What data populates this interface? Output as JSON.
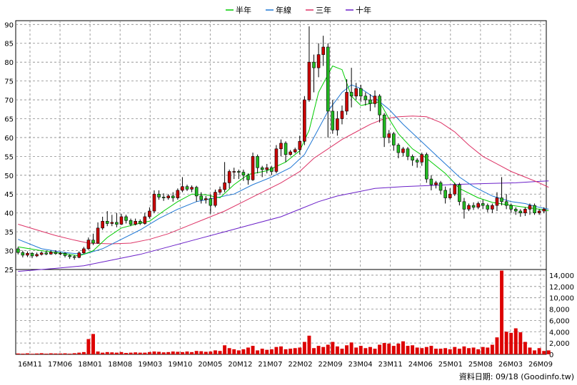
{
  "chart_data": [
    {
      "type": "candlestick",
      "legend": [
        {
          "name": "半年",
          "color": "#00cc00"
        },
        {
          "name": "年線",
          "color": "#1f77d4"
        },
        {
          "name": "三年",
          "color": "#dd3366"
        },
        {
          "name": "十年",
          "color": "#6a1fc8"
        }
      ],
      "ylim": [
        25,
        91
      ],
      "yticks": [
        25,
        30,
        35,
        40,
        45,
        50,
        55,
        60,
        65,
        70,
        75,
        80,
        85,
        90
      ],
      "xticks": [
        "16M11",
        "17M06",
        "18M01",
        "18M08",
        "19M03",
        "19M10",
        "20M05",
        "20M12",
        "21M07",
        "22M02",
        "22M09",
        "23M04",
        "23M11",
        "24M06",
        "25M01",
        "25M08",
        "26M03",
        "26M09"
      ],
      "grid": true,
      "candles": [
        [
          30.5,
          29.5,
          31.0,
          29.0
        ],
        [
          29.5,
          28.8,
          30.0,
          28.2
        ],
        [
          28.8,
          29.3,
          29.8,
          28.3
        ],
        [
          29.3,
          28.6,
          29.6,
          28.0
        ],
        [
          28.6,
          29.0,
          29.5,
          28.3
        ],
        [
          29.0,
          29.4,
          29.8,
          28.7
        ],
        [
          29.4,
          29.1,
          29.9,
          28.8
        ],
        [
          29.1,
          29.6,
          30.0,
          28.9
        ],
        [
          29.6,
          29.2,
          30.1,
          28.9
        ],
        [
          29.2,
          29.3,
          29.7,
          28.8
        ],
        [
          29.3,
          28.7,
          29.6,
          28.2
        ],
        [
          28.7,
          28.4,
          29.0,
          27.8
        ],
        [
          28.4,
          28.2,
          28.8,
          27.6
        ],
        [
          28.2,
          29.4,
          29.8,
          28.0
        ],
        [
          29.4,
          30.5,
          31.0,
          29.1
        ],
        [
          30.5,
          32.8,
          33.5,
          30.2
        ],
        [
          32.8,
          32.0,
          34.5,
          31.5
        ],
        [
          32.0,
          36.0,
          37.5,
          31.8
        ],
        [
          36.0,
          37.8,
          39.0,
          35.5
        ],
        [
          37.8,
          37.2,
          40.5,
          36.5
        ],
        [
          37.2,
          37.5,
          39.5,
          36.5
        ],
        [
          37.5,
          37.0,
          40.0,
          36.2
        ],
        [
          37.0,
          39.0,
          39.8,
          36.8
        ],
        [
          39.0,
          38.0,
          39.5,
          37.2
        ],
        [
          38.0,
          37.0,
          38.5,
          36.5
        ],
        [
          37.0,
          37.8,
          38.5,
          36.7
        ],
        [
          37.8,
          37.2,
          38.3,
          36.8
        ],
        [
          37.2,
          39.0,
          40.0,
          36.9
        ],
        [
          39.0,
          40.5,
          41.5,
          38.5
        ],
        [
          40.5,
          45.0,
          46.0,
          40.0
        ],
        [
          45.0,
          44.2,
          46.0,
          43.5
        ],
        [
          44.2,
          44.0,
          45.2,
          43.2
        ],
        [
          44.0,
          44.5,
          45.0,
          43.5
        ],
        [
          44.5,
          44.0,
          45.5,
          43.0
        ],
        [
          44.0,
          46.0,
          46.5,
          43.5
        ],
        [
          46.0,
          47.0,
          49.5,
          45.5
        ],
        [
          47.0,
          46.3,
          47.5,
          45.8
        ],
        [
          46.3,
          46.8,
          47.3,
          45.5
        ],
        [
          46.8,
          44.5,
          47.2,
          43.0
        ],
        [
          44.5,
          43.5,
          45.5,
          42.5
        ],
        [
          43.5,
          43.8,
          44.5,
          42.5
        ],
        [
          43.8,
          42.0,
          45.0,
          39.8
        ],
        [
          42.0,
          45.5,
          46.2,
          41.5
        ],
        [
          45.5,
          46.2,
          47.0,
          44.8
        ],
        [
          46.2,
          48.0,
          53.5,
          45.5
        ],
        [
          48.0,
          51.0,
          51.5,
          46.5
        ],
        [
          51.0,
          51.0,
          52.0,
          49.0
        ],
        [
          51.0,
          50.8,
          51.5,
          49.0
        ],
        [
          50.8,
          50.0,
          51.5,
          48.5
        ],
        [
          50.0,
          48.8,
          50.5,
          47.5
        ],
        [
          48.8,
          55.0,
          56.0,
          48.5
        ],
        [
          55.0,
          52.0,
          55.5,
          50.5
        ],
        [
          52.0,
          51.5,
          52.5,
          49.5
        ],
        [
          51.5,
          52.0,
          53.0,
          50.5
        ],
        [
          52.0,
          51.0,
          52.5,
          50.0
        ],
        [
          51.0,
          57.0,
          58.0,
          50.5
        ],
        [
          57.0,
          58.5,
          59.5,
          55.0
        ],
        [
          58.5,
          55.5,
          59.0,
          53.5
        ],
        [
          55.5,
          56.2,
          56.7,
          55.2
        ],
        [
          56.2,
          56.8,
          57.3,
          55.8
        ],
        [
          56.8,
          59.0,
          60.5,
          55.5
        ],
        [
          59.0,
          70.0,
          71.0,
          58.0
        ],
        [
          70.0,
          80.0,
          89.5,
          69.5
        ],
        [
          80.0,
          78.5,
          82.0,
          72.0
        ],
        [
          78.5,
          82.0,
          85.0,
          76.0
        ],
        [
          82.0,
          84.0,
          87.0,
          79.0
        ],
        [
          84.0,
          67.0,
          85.0,
          60.0
        ],
        [
          67.0,
          62.0,
          70.0,
          61.0
        ],
        [
          62.0,
          65.0,
          67.0,
          60.5
        ],
        [
          65.0,
          67.0,
          68.5,
          63.5
        ],
        [
          67.0,
          72.0,
          75.5,
          66.0
        ],
        [
          72.0,
          71.0,
          78.5,
          68.0
        ],
        [
          71.0,
          73.0,
          74.5,
          70.0
        ],
        [
          73.0,
          71.0,
          74.0,
          69.5
        ],
        [
          71.0,
          70.0,
          72.0,
          68.5
        ],
        [
          70.0,
          69.0,
          71.5,
          67.0
        ],
        [
          69.0,
          71.0,
          72.5,
          68.0
        ],
        [
          71.0,
          66.0,
          71.5,
          64.0
        ],
        [
          66.0,
          60.0,
          66.5,
          57.5
        ],
        [
          60.0,
          61.0,
          62.0,
          58.5
        ],
        [
          61.0,
          58.0,
          61.5,
          56.5
        ],
        [
          58.0,
          56.0,
          58.5,
          54.5
        ],
        [
          56.0,
          57.0,
          57.5,
          55.0
        ],
        [
          57.0,
          55.0,
          57.5,
          54.0
        ],
        [
          55.0,
          54.0,
          55.5,
          52.5
        ],
        [
          54.0,
          53.5,
          54.5,
          52.0
        ],
        [
          53.5,
          55.5,
          56.0,
          52.5
        ],
        [
          55.5,
          49.0,
          56.0,
          48.0
        ],
        [
          49.0,
          47.5,
          50.0,
          46.0
        ],
        [
          47.5,
          48.0,
          48.5,
          46.5
        ],
        [
          48.0,
          46.0,
          48.5,
          45.0
        ],
        [
          46.0,
          44.0,
          47.0,
          42.5
        ],
        [
          44.0,
          45.0,
          46.5,
          43.5
        ],
        [
          45.0,
          47.5,
          48.0,
          44.5
        ],
        [
          47.5,
          43.0,
          48.0,
          42.0
        ],
        [
          43.0,
          41.0,
          44.0,
          38.5
        ],
        [
          41.0,
          42.0,
          42.5,
          40.5
        ],
        [
          42.0,
          41.5,
          42.8,
          40.8
        ],
        [
          41.5,
          42.5,
          43.0,
          41.0
        ],
        [
          42.5,
          42.0,
          43.5,
          41.0
        ],
        [
          42.0,
          41.0,
          42.5,
          40.2
        ],
        [
          41.0,
          42.0,
          42.5,
          40.0
        ],
        [
          42.0,
          44.0,
          45.5,
          40.5
        ],
        [
          44.0,
          43.0,
          49.5,
          42.0
        ],
        [
          43.0,
          42.0,
          45.0,
          41.0
        ],
        [
          42.0,
          41.0,
          42.5,
          40.0
        ],
        [
          41.0,
          40.5,
          41.5,
          39.5
        ],
        [
          40.5,
          40.0,
          41.0,
          39.0
        ],
        [
          40.0,
          41.0,
          41.5,
          39.2
        ],
        [
          41.0,
          42.0,
          42.5,
          39.5
        ],
        [
          42.0,
          40.0,
          42.5,
          39.5
        ],
        [
          40.0,
          40.5,
          41.0,
          39.5
        ],
        [
          40.5,
          41.0,
          41.5,
          40.0
        ]
      ],
      "ma_half_year": [
        [
          0,
          31.0
        ],
        [
          5,
          30.0
        ],
        [
          10,
          29.2
        ],
        [
          13,
          28.6
        ],
        [
          16,
          30.0
        ],
        [
          19,
          33.5
        ],
        [
          22,
          36.0
        ],
        [
          26,
          37.3
        ],
        [
          28,
          37.8
        ],
        [
          31,
          40.5
        ],
        [
          34,
          43.0
        ],
        [
          37,
          45.0
        ],
        [
          40,
          44.8
        ],
        [
          43,
          44.0
        ],
        [
          46,
          47.5
        ],
        [
          49,
          50.2
        ],
        [
          53,
          51.2
        ],
        [
          57,
          53.5
        ],
        [
          60,
          56.5
        ],
        [
          62,
          62.0
        ],
        [
          64,
          72.0
        ],
        [
          67,
          79.0
        ],
        [
          69,
          78.0
        ],
        [
          71,
          71.0
        ],
        [
          73,
          68.5
        ],
        [
          75,
          69.0
        ],
        [
          77,
          69.5
        ],
        [
          79,
          65.0
        ],
        [
          81,
          61.0
        ],
        [
          84,
          57.0
        ],
        [
          87,
          54.5
        ],
        [
          91,
          50.5
        ],
        [
          94,
          46.5
        ],
        [
          98,
          44.0
        ],
        [
          101,
          42.8
        ],
        [
          104,
          42.2
        ],
        [
          108,
          41.5
        ],
        [
          111,
          41.0
        ],
        [
          113,
          40.6
        ]
      ],
      "ma_year": [
        [
          0,
          33.0
        ],
        [
          5,
          30.5
        ],
        [
          10,
          29.5
        ],
        [
          14,
          29.0
        ],
        [
          18,
          30.5
        ],
        [
          22,
          33.0
        ],
        [
          26,
          35.5
        ],
        [
          30,
          38.5
        ],
        [
          34,
          41.0
        ],
        [
          38,
          43.0
        ],
        [
          42,
          44.0
        ],
        [
          46,
          45.0
        ],
        [
          50,
          47.5
        ],
        [
          54,
          49.5
        ],
        [
          58,
          52.0
        ],
        [
          61,
          55.5
        ],
        [
          63,
          60.0
        ],
        [
          66,
          67.0
        ],
        [
          69,
          72.0
        ],
        [
          71,
          74.0
        ],
        [
          73,
          73.0
        ],
        [
          76,
          70.5
        ],
        [
          79,
          67.5
        ],
        [
          82,
          63.5
        ],
        [
          85,
          60.0
        ],
        [
          88,
          56.5
        ],
        [
          91,
          53.0
        ],
        [
          94,
          49.5
        ],
        [
          97,
          47.0
        ],
        [
          101,
          44.5
        ],
        [
          105,
          43.0
        ],
        [
          108,
          42.5
        ],
        [
          111,
          41.5
        ],
        [
          113,
          41.0
        ]
      ],
      "ma_three_year": [
        [
          0,
          37.0
        ],
        [
          4,
          35.5
        ],
        [
          8,
          34.0
        ],
        [
          12,
          32.8
        ],
        [
          15,
          32.0
        ],
        [
          20,
          31.8
        ],
        [
          24,
          32.0
        ],
        [
          28,
          33.0
        ],
        [
          32,
          34.5
        ],
        [
          36,
          36.5
        ],
        [
          40,
          38.5
        ],
        [
          44,
          40.5
        ],
        [
          48,
          43.0
        ],
        [
          52,
          45.5
        ],
        [
          56,
          48.0
        ],
        [
          60,
          51.0
        ],
        [
          63,
          54.5
        ],
        [
          66,
          57.0
        ],
        [
          69,
          59.5
        ],
        [
          72,
          61.5
        ],
        [
          75,
          63.5
        ],
        [
          78,
          65.0
        ],
        [
          81,
          65.5
        ],
        [
          84,
          65.7
        ],
        [
          87,
          65.5
        ],
        [
          90,
          64.0
        ],
        [
          93,
          61.5
        ],
        [
          96,
          58.0
        ],
        [
          99,
          55.0
        ],
        [
          102,
          53.0
        ],
        [
          105,
          51.0
        ],
        [
          108,
          49.5
        ],
        [
          111,
          48.0
        ],
        [
          113,
          46.8
        ]
      ],
      "ma_ten_year": [
        [
          0,
          24.5
        ],
        [
          8,
          25.3
        ],
        [
          14,
          26.0
        ],
        [
          20,
          27.5
        ],
        [
          26,
          29.0
        ],
        [
          32,
          31.0
        ],
        [
          38,
          33.0
        ],
        [
          44,
          35.0
        ],
        [
          50,
          37.0
        ],
        [
          56,
          39.0
        ],
        [
          60,
          41.0
        ],
        [
          64,
          43.0
        ],
        [
          68,
          44.5
        ],
        [
          72,
          45.5
        ],
        [
          76,
          46.5
        ],
        [
          82,
          47.0
        ],
        [
          88,
          47.3
        ],
        [
          94,
          47.6
        ],
        [
          100,
          47.8
        ],
        [
          106,
          48.0
        ],
        [
          110,
          48.3
        ],
        [
          113,
          48.5
        ]
      ]
    },
    {
      "type": "bar",
      "ylim": [
        0,
        15000
      ],
      "yticks": [
        0,
        2000,
        4000,
        6000,
        8000,
        10000,
        12000,
        14000
      ],
      "ytick_labels": [
        "0",
        "2,000",
        "4,000",
        "6,000",
        "8,000",
        "10,000",
        "12,000",
        "14,000"
      ],
      "color": "#dd0000",
      "values": [
        150,
        120,
        180,
        100,
        150,
        200,
        120,
        180,
        150,
        150,
        180,
        120,
        200,
        300,
        400,
        2700,
        3600,
        500,
        300,
        400,
        350,
        300,
        400,
        250,
        300,
        350,
        300,
        300,
        400,
        500,
        450,
        350,
        400,
        500,
        450,
        400,
        500,
        400,
        600,
        550,
        450,
        500,
        700,
        600,
        1600,
        1100,
        900,
        700,
        900,
        1200,
        1500,
        700,
        1000,
        800,
        900,
        1300,
        1400,
        900,
        1000,
        1100,
        1200,
        2200,
        3300,
        1100,
        1500,
        1300,
        1700,
        2200,
        1400,
        1000,
        1600,
        2100,
        1200,
        1500,
        1100,
        1300,
        1000,
        1700,
        2000,
        1900,
        1500,
        1900,
        2300,
        1500,
        1600,
        1200,
        1100,
        1300,
        1500,
        1000,
        1000,
        1100,
        900,
        1300,
        1000,
        1400,
        1100,
        1200,
        900,
        1300,
        1200,
        1700,
        3000,
        14800,
        4000,
        3800,
        4600,
        3900,
        2200,
        1200,
        700,
        1100,
        600,
        700
      ]
    }
  ],
  "footer": {
    "date_label": "資料日期: 09/18",
    "source": "(Goodinfo.tw)"
  }
}
